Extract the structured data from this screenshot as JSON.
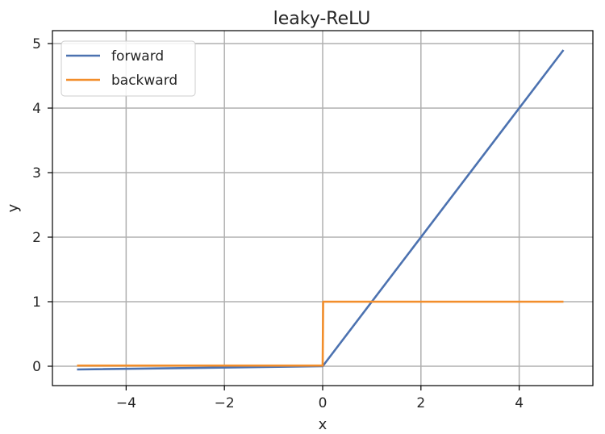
{
  "chart_data": {
    "type": "line",
    "title": "leaky-ReLU",
    "xlabel": "x",
    "ylabel": "y",
    "xlim": [
      -5.5,
      5.5
    ],
    "ylim": [
      -0.3,
      5.2
    ],
    "xticks": [
      -4,
      -2,
      0,
      2,
      4
    ],
    "xtick_labels": [
      "−4",
      "−2",
      "0",
      "2",
      "4"
    ],
    "yticks": [
      0,
      1,
      2,
      3,
      4,
      5
    ],
    "ytick_labels": [
      "0",
      "1",
      "2",
      "3",
      "4",
      "5"
    ],
    "grid": true,
    "legend": "top-left",
    "series": [
      {
        "name": "forward",
        "color": "#4c72b0",
        "x": [
          -5.0,
          0.0,
          4.9
        ],
        "y": [
          -0.05,
          0.0,
          4.9
        ]
      },
      {
        "name": "backward",
        "color": "#f28e2b",
        "x": [
          -5.0,
          0.0,
          0.01,
          4.9
        ],
        "y": [
          0.01,
          0.01,
          1.0,
          1.0
        ]
      }
    ]
  }
}
